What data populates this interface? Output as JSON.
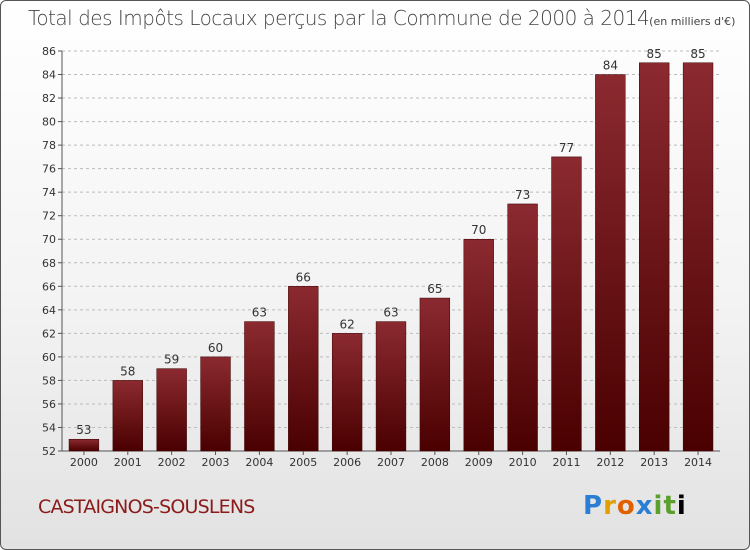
{
  "header": {
    "title": "Total des Impôts Locaux perçus par la Commune de 2000 à 2014",
    "unit": "(en milliers d'€)"
  },
  "footer": {
    "commune": "CASTAIGNOS-SOUSLENS",
    "logo_letters": [
      "P",
      "r",
      "o",
      "x",
      "i",
      "t",
      "i"
    ]
  },
  "colors": {
    "bar_top": "#8b2a30",
    "bar_bottom": "#4a0000",
    "grid": "#bbbbbb",
    "commune": "#8b1a1a"
  },
  "chart_data": {
    "type": "bar",
    "title": "Total des Impôts Locaux perçus par la Commune de 2000 à 2014",
    "xlabel": "",
    "ylabel": "",
    "categories": [
      "2000",
      "2001",
      "2002",
      "2003",
      "2004",
      "2005",
      "2006",
      "2007",
      "2008",
      "2009",
      "2010",
      "2011",
      "2012",
      "2013",
      "2014"
    ],
    "values": [
      53,
      58,
      59,
      60,
      63,
      66,
      62,
      63,
      65,
      70,
      73,
      77,
      84,
      85,
      85
    ],
    "ylim": [
      52,
      86
    ],
    "yticks": [
      52,
      54,
      56,
      58,
      60,
      62,
      64,
      66,
      68,
      70,
      72,
      74,
      76,
      78,
      80,
      82,
      84,
      86
    ],
    "grid": true,
    "grid_style": "dashed"
  }
}
